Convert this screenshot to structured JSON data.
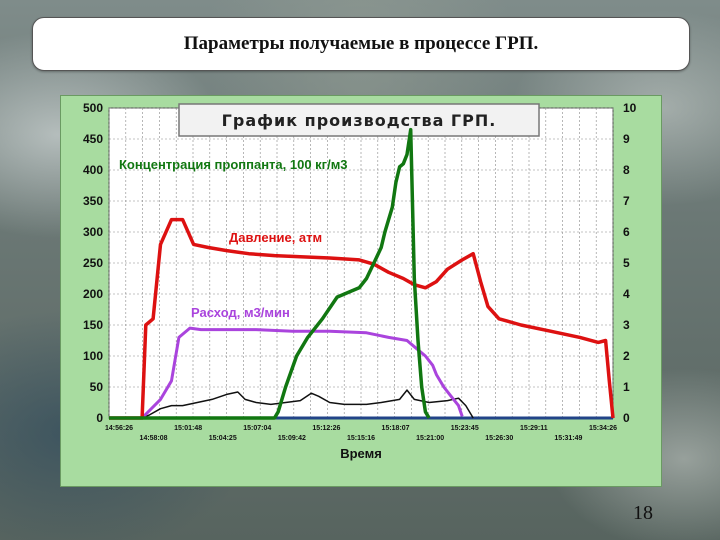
{
  "slide": {
    "title": "Параметры получаемые в процессе ГРП",
    "title_punct": ".",
    "page_number": "18"
  },
  "chart_data": {
    "type": "line",
    "title": "График производства ГРП.",
    "xlabel": "Время",
    "ylim_left": [
      0,
      500
    ],
    "ylim_right": [
      0,
      10
    ],
    "y_ticks_left": [
      "0",
      "50",
      "100",
      "150",
      "200",
      "250",
      "300",
      "350",
      "400",
      "450",
      "500"
    ],
    "y_ticks_right": [
      "0",
      "1",
      "2",
      "3",
      "4",
      "5",
      "6",
      "7",
      "8",
      "9",
      "10"
    ],
    "x_ticks_upper": [
      "14:56:26",
      "15:01:48",
      "15:07:04",
      "15:12:26",
      "15:18:07",
      "15:23:45",
      "15:29:11",
      "15:34:26"
    ],
    "x_ticks_lower": [
      "14:58:08",
      "15:04:25",
      "15:09:42",
      "15:15:16",
      "15:21:00",
      "15:26:30",
      "15:31:49"
    ],
    "grid": true,
    "colors": {
      "pressure": "#dd1111",
      "rate": "#aa44dd",
      "concentration": "#117711",
      "black_line": "#111111",
      "baseline": "#224488",
      "plot_bg": "#ffffff",
      "grid": "#888888"
    },
    "series": [
      {
        "name": "Давление, атм",
        "key": "pressure",
        "axis": "left",
        "points": [
          [
            0,
            0
          ],
          [
            5,
            0
          ],
          [
            9,
            0
          ],
          [
            10,
            150
          ],
          [
            12,
            160
          ],
          [
            14,
            280
          ],
          [
            17,
            320
          ],
          [
            20,
            320
          ],
          [
            23,
            280
          ],
          [
            27,
            275
          ],
          [
            32,
            270
          ],
          [
            38,
            265
          ],
          [
            45,
            262
          ],
          [
            52,
            260
          ],
          [
            60,
            258
          ],
          [
            68,
            255
          ],
          [
            72,
            248
          ],
          [
            76,
            235
          ],
          [
            80,
            225
          ],
          [
            83,
            215
          ],
          [
            86,
            210
          ],
          [
            89,
            220
          ],
          [
            92,
            240
          ],
          [
            96,
            255
          ],
          [
            99,
            265
          ],
          [
            101,
            220
          ],
          [
            103,
            180
          ],
          [
            106,
            160
          ],
          [
            112,
            150
          ],
          [
            120,
            140
          ],
          [
            128,
            130
          ],
          [
            133,
            122
          ],
          [
            135,
            125
          ],
          [
            136,
            60
          ],
          [
            137,
            0
          ]
        ]
      },
      {
        "name": "Расход, м3/мин",
        "key": "rate",
        "axis": "right",
        "points": [
          [
            0,
            0
          ],
          [
            9,
            0
          ],
          [
            14,
            0.6
          ],
          [
            17,
            1.2
          ],
          [
            19,
            2.6
          ],
          [
            22,
            2.9
          ],
          [
            25,
            2.85
          ],
          [
            30,
            2.85
          ],
          [
            40,
            2.85
          ],
          [
            50,
            2.8
          ],
          [
            60,
            2.8
          ],
          [
            70,
            2.75
          ],
          [
            76,
            2.6
          ],
          [
            81,
            2.5
          ],
          [
            84,
            2.2
          ],
          [
            86,
            2.0
          ],
          [
            88,
            1.7
          ],
          [
            89,
            1.4
          ],
          [
            91,
            1.0
          ],
          [
            93,
            0.7
          ],
          [
            95,
            0.4
          ],
          [
            96,
            0.05
          ]
        ]
      },
      {
        "name": "Концентрация проппанта, 100 кг/м3",
        "key": "concentration",
        "axis": "right",
        "points": [
          [
            0,
            0
          ],
          [
            45,
            0
          ],
          [
            46,
            0.2
          ],
          [
            48,
            1.0
          ],
          [
            51,
            2.0
          ],
          [
            54,
            2.6
          ],
          [
            58,
            3.2
          ],
          [
            62,
            3.9
          ],
          [
            66,
            4.1
          ],
          [
            68,
            4.2
          ],
          [
            70,
            4.5
          ],
          [
            72,
            5.0
          ],
          [
            74,
            5.5
          ],
          [
            75,
            6.0
          ],
          [
            77,
            6.8
          ],
          [
            78,
            7.6
          ],
          [
            79,
            8.1
          ],
          [
            80,
            8.2
          ],
          [
            81,
            8.5
          ],
          [
            82,
            9.3
          ],
          [
            83,
            4.5
          ],
          [
            84,
            2.5
          ],
          [
            85,
            1.0
          ],
          [
            86,
            0.2
          ],
          [
            87,
            0
          ]
        ]
      },
      {
        "name": "",
        "key": "black_line",
        "axis": "left",
        "points": [
          [
            0,
            0
          ],
          [
            9,
            0
          ],
          [
            11,
            5
          ],
          [
            14,
            15
          ],
          [
            17,
            20
          ],
          [
            20,
            20
          ],
          [
            24,
            25
          ],
          [
            28,
            30
          ],
          [
            32,
            38
          ],
          [
            35,
            42
          ],
          [
            37,
            30
          ],
          [
            40,
            25
          ],
          [
            44,
            22
          ],
          [
            48,
            25
          ],
          [
            52,
            28
          ],
          [
            55,
            40
          ],
          [
            57,
            35
          ],
          [
            60,
            25
          ],
          [
            64,
            22
          ],
          [
            70,
            22
          ],
          [
            74,
            25
          ],
          [
            77,
            28
          ],
          [
            79,
            30
          ],
          [
            81,
            45
          ],
          [
            83,
            30
          ],
          [
            87,
            25
          ],
          [
            92,
            28
          ],
          [
            95,
            32
          ],
          [
            97,
            20
          ],
          [
            99,
            0
          ]
        ]
      },
      {
        "name": "",
        "key": "baseline",
        "axis": "left",
        "points": [
          [
            0,
            0
          ],
          [
            137,
            0
          ]
        ]
      }
    ],
    "x_domain": [
      0,
      137
    ]
  }
}
